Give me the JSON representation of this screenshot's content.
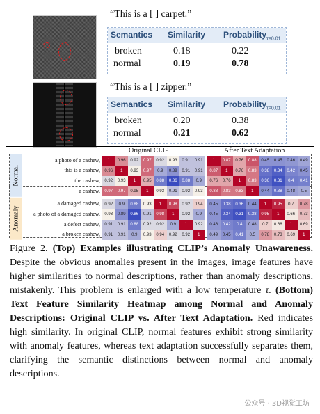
{
  "examples": [
    {
      "prompt": "“This is a [      ] carpet.”",
      "headers": {
        "semantics": "Semantics",
        "similarity": "Similarity",
        "probability": "Probability",
        "probability_sub": "τ=0.01"
      },
      "rows": [
        {
          "label": "broken",
          "similarity": "0.18",
          "probability": "0.22",
          "bold": false
        },
        {
          "label": "normal",
          "similarity": "0.19",
          "probability": "0.78",
          "bold": true
        }
      ]
    },
    {
      "prompt": "“This is a [      ] zipper.”",
      "headers": {
        "semantics": "Semantics",
        "similarity": "Similarity",
        "probability": "Probability",
        "probability_sub": "τ=0.01"
      },
      "rows": [
        {
          "label": "broken",
          "similarity": "0.20",
          "probability": "0.38",
          "bold": false
        },
        {
          "label": "normal",
          "similarity": "0.21",
          "probability": "0.62",
          "bold": true
        }
      ]
    }
  ],
  "heatmap": {
    "left_title": "Original CLIP",
    "right_title": "After Text Adaptation",
    "groups": [
      {
        "name": "Normal",
        "rows": [
          "a photo of a cashew,",
          "this is a cashew,",
          "the cashew,",
          "a cashew,"
        ]
      },
      {
        "name": "Anomaly",
        "rows": [
          "a damaged cashew,",
          "a photo of a damaged cashew,",
          "a defect cashew,",
          "a broken cashew,"
        ]
      }
    ],
    "original": [
      [
        "1",
        "0.96",
        "0.92",
        "0.97",
        "0.92",
        "0.93",
        "0.91",
        "0.91"
      ],
      [
        "0.96",
        "1",
        "0.93",
        "0.97",
        "0.9",
        "0.89",
        "0.91",
        "0.91"
      ],
      [
        "0.92",
        "0.93",
        "1",
        "0.95",
        "0.88",
        "0.86",
        "0.88",
        "0.9"
      ],
      [
        "0.97",
        "0.97",
        "0.95",
        "1",
        "0.93",
        "0.91",
        "0.92",
        "0.93"
      ],
      [
        "0.92",
        "0.9",
        "0.88",
        "0.93",
        "1",
        "0.98",
        "0.92",
        "0.94"
      ],
      [
        "0.93",
        "0.89",
        "0.86",
        "0.91",
        "0.98",
        "1",
        "0.92",
        "0.9"
      ],
      [
        "0.91",
        "0.91",
        "0.88",
        "0.92",
        "0.92",
        "0.9",
        "1",
        "0.92"
      ],
      [
        "0.91",
        "0.91",
        "0.9",
        "0.93",
        "0.94",
        "0.92",
        "0.92",
        "1"
      ]
    ],
    "adapted": [
      [
        "1",
        "0.87",
        "0.76",
        "0.88",
        "0.45",
        "0.45",
        "0.46",
        "0.49"
      ],
      [
        "0.87",
        "1",
        "0.76",
        "0.83",
        "0.38",
        "0.34",
        "0.42",
        "0.45"
      ],
      [
        "0.76",
        "0.76",
        "1",
        "0.83",
        "0.36",
        "0.31",
        "0.4",
        "0.41"
      ],
      [
        "0.88",
        "0.83",
        "0.83",
        "1",
        "0.44",
        "0.38",
        "0.48",
        "0.5"
      ],
      [
        "0.45",
        "0.38",
        "0.36",
        "0.44",
        "1",
        "0.95",
        "0.7",
        "0.78"
      ],
      [
        "0.45",
        "0.34",
        "0.31",
        "0.38",
        "0.95",
        "1",
        "0.66",
        "0.73"
      ],
      [
        "0.46",
        "0.42",
        "0.4",
        "0.48",
        "0.7",
        "0.66",
        "1",
        "0.69"
      ],
      [
        "0.49",
        "0.45",
        "0.41",
        "0.5",
        "0.78",
        "0.73",
        "0.69",
        "1"
      ]
    ],
    "colors": {
      "hot": "#b40426",
      "mid": "#f5f0e8",
      "cool": "#3b4cc0",
      "normal_band": "#dbe7f5",
      "anomaly_band": "#fbe8c8"
    }
  },
  "caption": {
    "label": "Figure 2.",
    "top_bold": "(Top) Examples illustrating CLIP’s Anomaly Unawareness.",
    "text1": "Despite the obvious anomalies present in the images, image features have higher similarities to normal descriptions, rather than anomaly descriptions, mistakenly. This problem is enlarged with a low temperature",
    "tau": "τ.",
    "bottom_bold": "(Bottom) Text Feature Similarity Heatmap among Normal and Anomaly Descriptions: Original CLIP vs. After Text Adaptation.",
    "text2": "Red indicates high similarity. In original CLIP, normal features exhibit strong similarity with anomaly features, whereas text adaptation successfully separates them, clarifying the semantic distinctions between normal and anomaly descriptions."
  },
  "watermark": "公众号 · 3D视觉工坊"
}
